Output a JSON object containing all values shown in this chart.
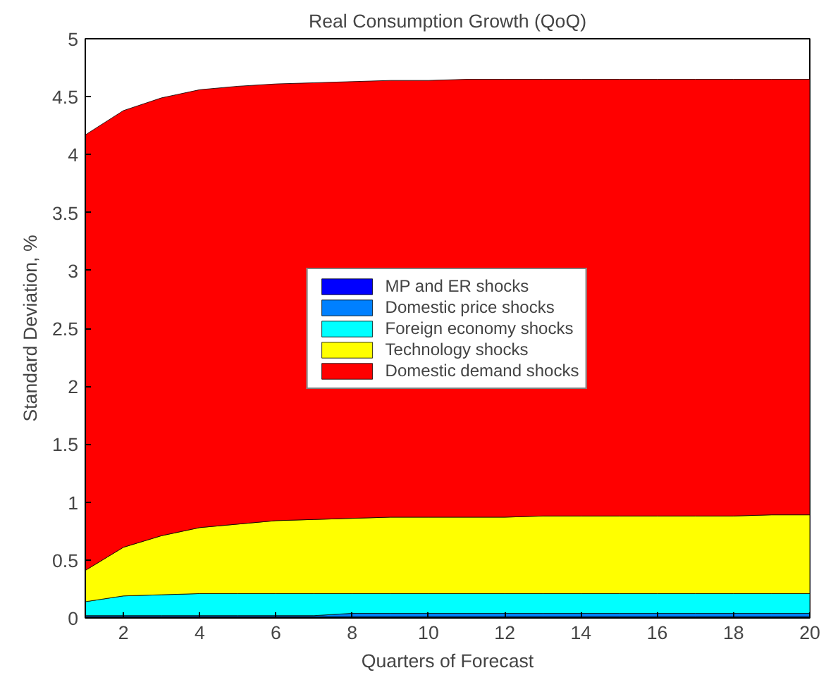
{
  "chart_data": {
    "type": "area",
    "stacked": true,
    "title": "Real Consumption Growth (QoQ)",
    "xlabel": "Quarters of Forecast",
    "ylabel": "Standard Deviation, %",
    "x": [
      1,
      2,
      3,
      4,
      5,
      6,
      7,
      8,
      9,
      10,
      11,
      12,
      13,
      14,
      15,
      16,
      17,
      18,
      19,
      20
    ],
    "series": [
      {
        "name": "MP and ER shocks",
        "color": "#0000ff",
        "values": [
          0.01,
          0.01,
          0.01,
          0.01,
          0.01,
          0.01,
          0.01,
          0.01,
          0.01,
          0.01,
          0.01,
          0.01,
          0.01,
          0.01,
          0.01,
          0.01,
          0.01,
          0.01,
          0.01,
          0.01
        ]
      },
      {
        "name": "Domestic price shocks",
        "color": "#0080ff",
        "values": [
          0.01,
          0.01,
          0.01,
          0.01,
          0.01,
          0.01,
          0.01,
          0.03,
          0.03,
          0.03,
          0.03,
          0.03,
          0.03,
          0.03,
          0.03,
          0.03,
          0.03,
          0.03,
          0.03,
          0.03
        ]
      },
      {
        "name": "Foreign economy shocks",
        "color": "#00ffff",
        "values": [
          0.12,
          0.17,
          0.18,
          0.19,
          0.19,
          0.19,
          0.19,
          0.17,
          0.17,
          0.17,
          0.17,
          0.17,
          0.17,
          0.17,
          0.17,
          0.17,
          0.17,
          0.17,
          0.17,
          0.17
        ]
      },
      {
        "name": "Technology shocks",
        "color": "#ffff00",
        "values": [
          0.27,
          0.42,
          0.51,
          0.57,
          0.6,
          0.63,
          0.64,
          0.65,
          0.66,
          0.66,
          0.66,
          0.66,
          0.67,
          0.67,
          0.67,
          0.67,
          0.67,
          0.67,
          0.68,
          0.68
        ]
      },
      {
        "name": "Domestic demand shocks",
        "color": "#ff0000",
        "values": [
          3.76,
          3.77,
          3.78,
          3.78,
          3.78,
          3.77,
          3.77,
          3.77,
          3.77,
          3.77,
          3.78,
          3.78,
          3.77,
          3.77,
          3.77,
          3.77,
          3.77,
          3.77,
          3.76,
          3.76
        ]
      }
    ],
    "xlim": [
      1,
      20
    ],
    "xticks": [
      2,
      4,
      6,
      8,
      10,
      12,
      14,
      16,
      18,
      20
    ],
    "ylim": [
      0,
      5
    ],
    "yticks": [
      0,
      0.5,
      1,
      1.5,
      2,
      2.5,
      3,
      3.5,
      4,
      4.5,
      5
    ],
    "grid": false,
    "legend": "center"
  }
}
